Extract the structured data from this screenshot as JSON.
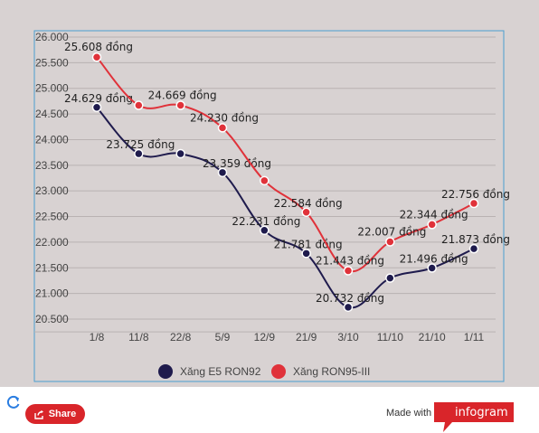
{
  "chart_data": {
    "type": "line",
    "categories": [
      "1/8",
      "11/8",
      "22/8",
      "5/9",
      "12/9",
      "21/9",
      "3/10",
      "11/10",
      "21/10",
      "1/11"
    ],
    "y_ticks": [
      "26.000",
      "25.500",
      "25.000",
      "24.500",
      "24.000",
      "23.500",
      "23.000",
      "22.500",
      "22.000",
      "21.500",
      "21.000",
      "20.500"
    ],
    "ylim": [
      20250,
      26000
    ],
    "grid": true,
    "legend_position": "bottom",
    "series": [
      {
        "name": "Xăng E5 RON92",
        "color": "#1f1b4d",
        "values": [
          24629,
          23725,
          23725,
          23359,
          22231,
          21781,
          20732,
          21300,
          21496,
          21873
        ],
        "labels": [
          "24.629 đồng",
          "23.725 đồng",
          "",
          "23.359 đồng",
          "22.231 đồng",
          "21.781 đồng",
          "20.732 đồng",
          "",
          "21.496 đồng",
          "21.873 đồng"
        ]
      },
      {
        "name": "Xăng RON95-III",
        "color": "#e0323a",
        "values": [
          25608,
          24669,
          24669,
          24230,
          23200,
          22584,
          21443,
          22007,
          22344,
          22756
        ],
        "labels": [
          "25.608 đồng",
          "",
          "24.669 đồng",
          "24.230 đồng",
          "",
          "22.584 đồng",
          "21.443 đồng",
          "22.007 đồng",
          "22.344 đồng",
          "22.756 đồng"
        ]
      }
    ]
  },
  "footer": {
    "share_label": "Share",
    "made_with": "Made with",
    "brand": "infogram"
  },
  "colors": {
    "chart_bg": "#d8d2d2",
    "share_red": "#d9252a"
  }
}
